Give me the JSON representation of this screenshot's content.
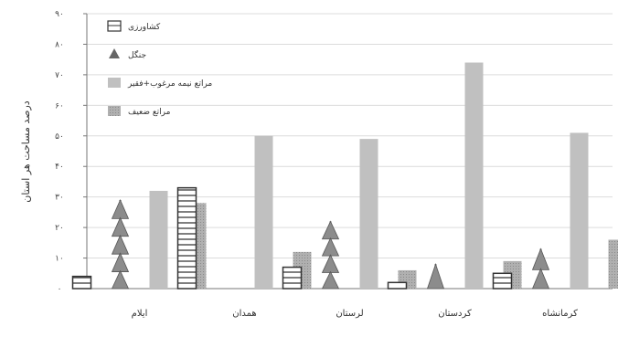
{
  "chart_data": {
    "type": "bar",
    "ylabel": "درصد مساحت هر استان",
    "ylim": [
      0,
      90
    ],
    "yticks": [
      0,
      10,
      20,
      30,
      40,
      50,
      60,
      70,
      80,
      90
    ],
    "ytick_labels": [
      "۰",
      "۱۰",
      "۲۰",
      "۳۰",
      "۴۰",
      "۵۰",
      "۶۰",
      "۷۰",
      "۸۰",
      "۹۰"
    ],
    "categories": [
      "ایلام",
      "همدان",
      "لرستان",
      "کردستان",
      "کرمانشاه"
    ],
    "grid": true,
    "legend_position": "top-left",
    "series": [
      {
        "name": "کشاورزی",
        "values": [
          4,
          33,
          7,
          2,
          5
        ],
        "pattern": "ladder"
      },
      {
        "name": "جنگل",
        "values": [
          29,
          0,
          22,
          8,
          13
        ],
        "pattern": "tree"
      },
      {
        "name": "مراتع نیمه مرغوب+فقیر",
        "values": [
          32,
          50,
          49,
          74,
          51
        ],
        "pattern": "solid",
        "color": "#c0c0c0"
      },
      {
        "name": "مراتع ضعیف",
        "values": [
          28,
          12,
          6,
          9,
          16
        ],
        "pattern": "dotted",
        "color": "#a8a8a8"
      }
    ]
  }
}
